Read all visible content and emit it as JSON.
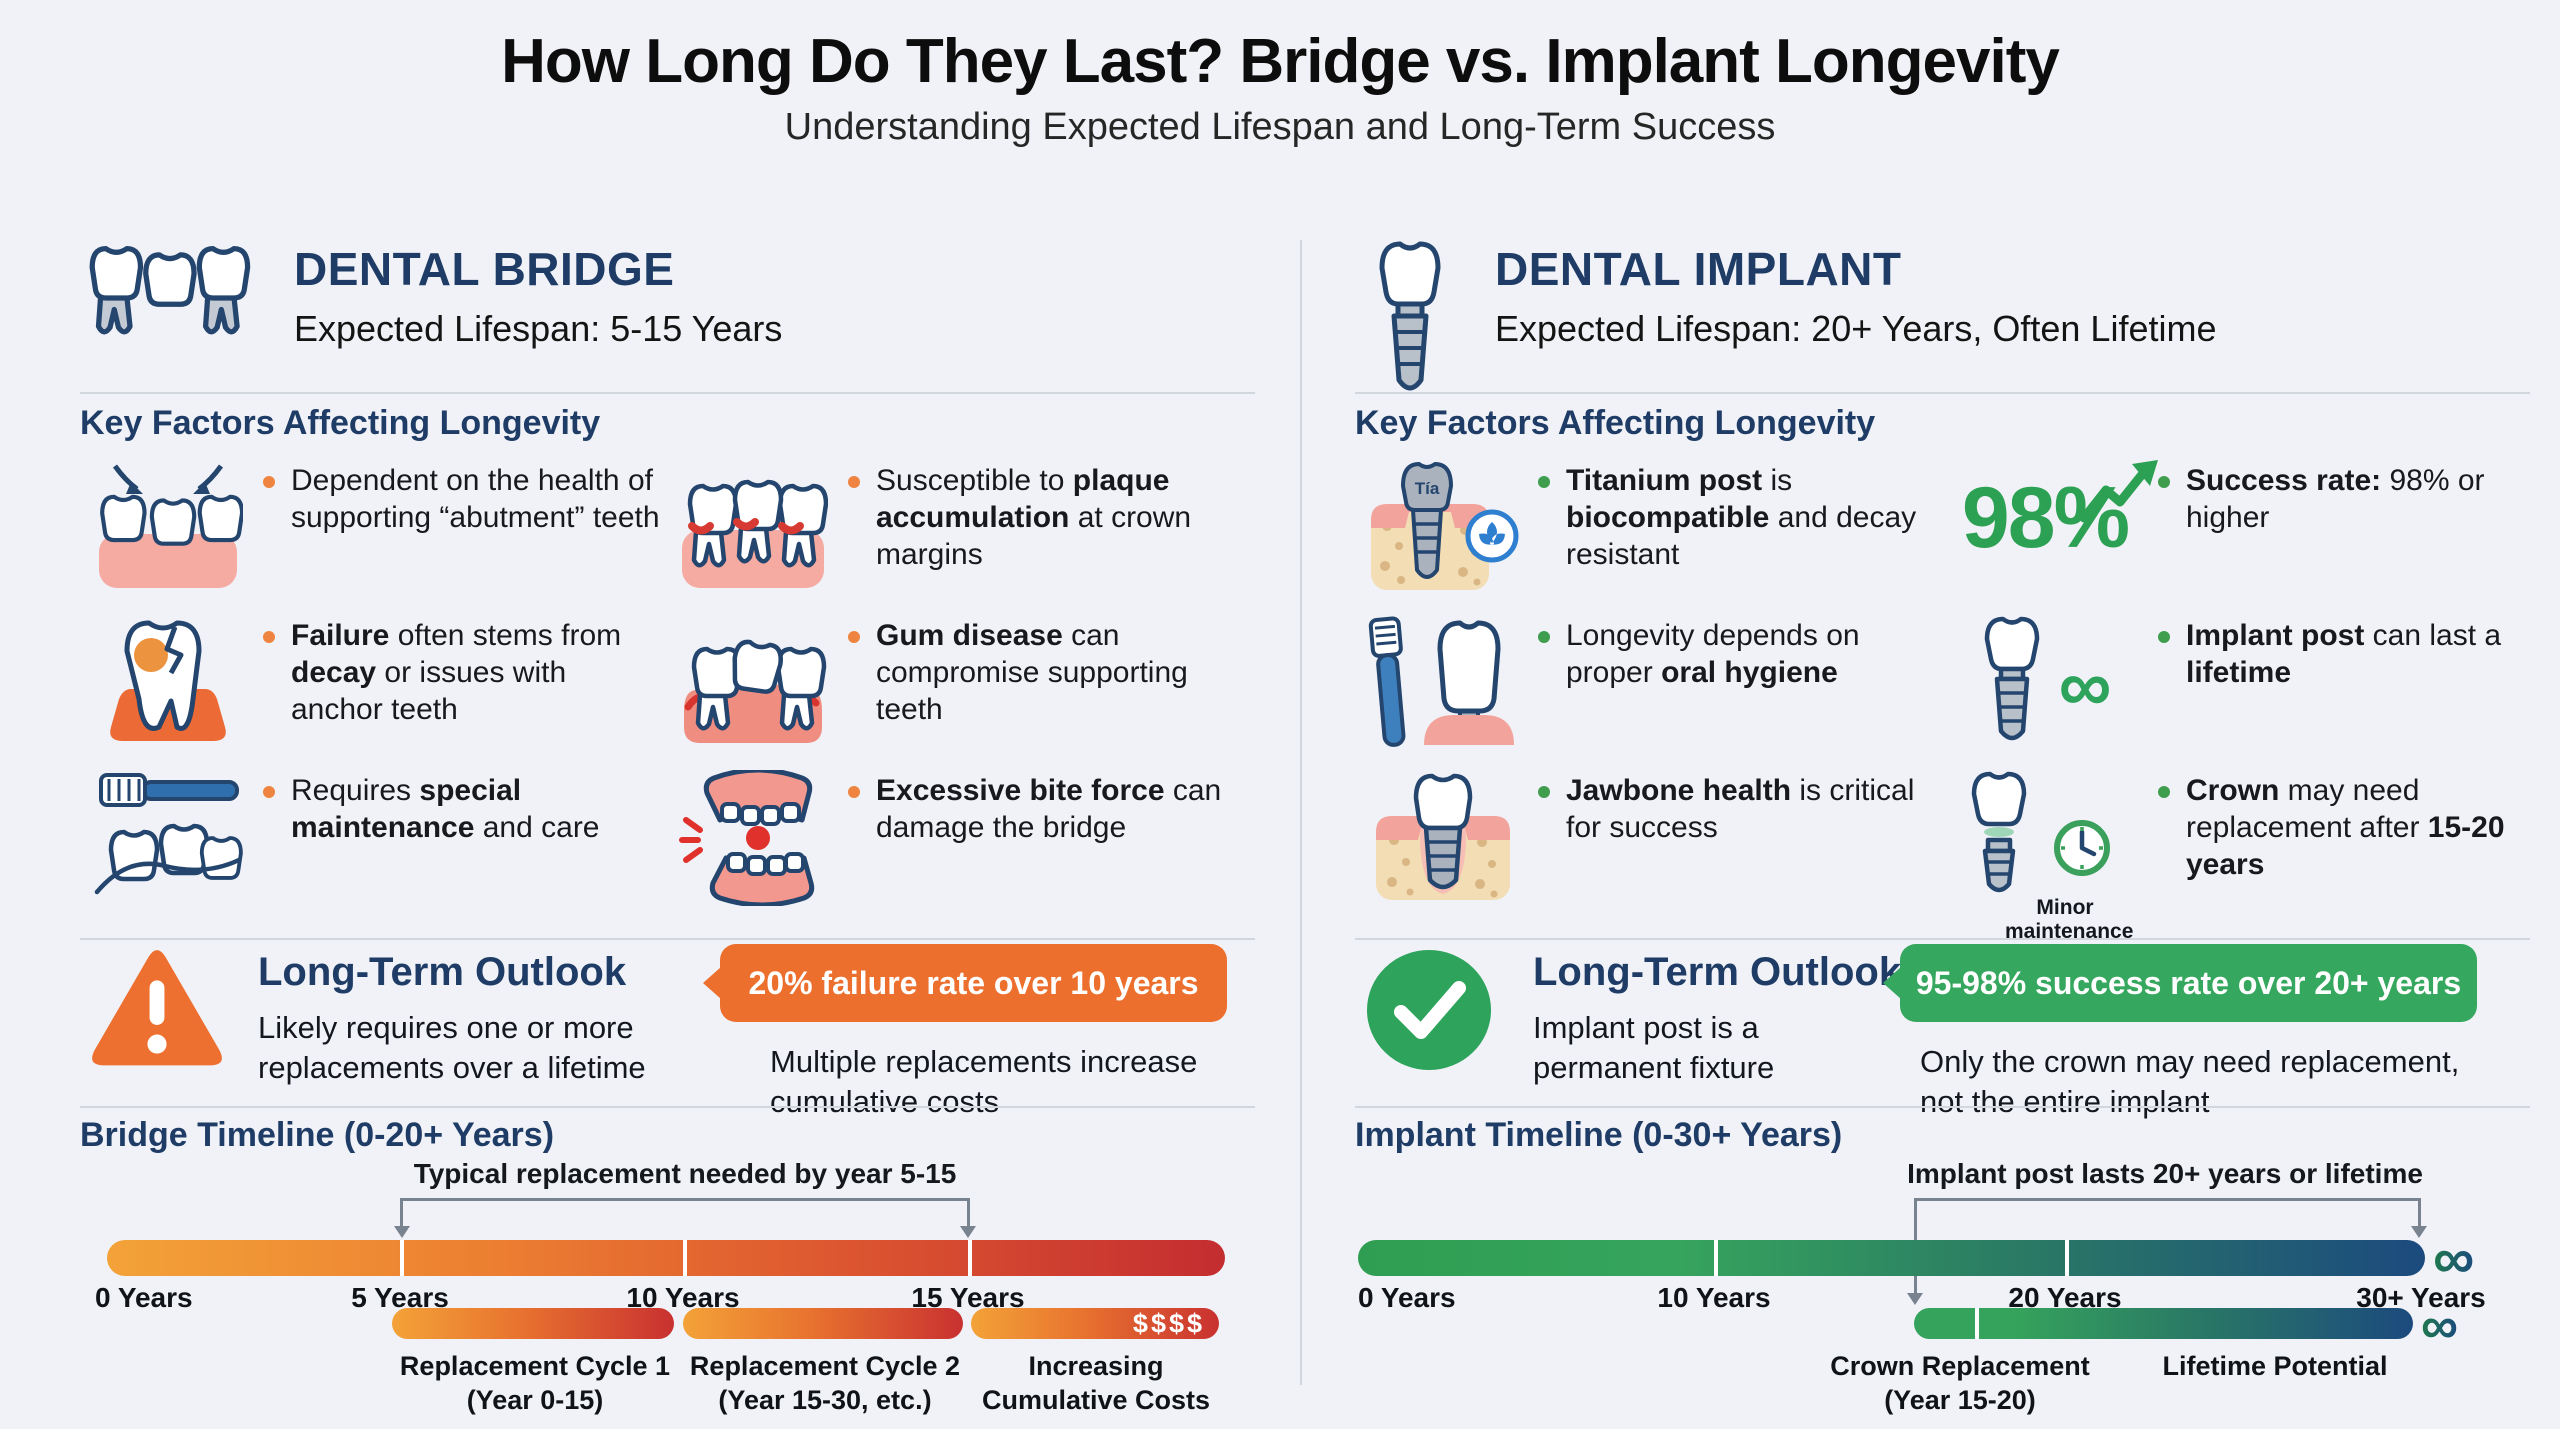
{
  "page": {
    "title": "How Long Do They Last? Bridge vs. Implant Longevity",
    "subtitle": "Understanding Expected Lifespan and Long-Term Success"
  },
  "colors": {
    "background": "#f0f2f7",
    "navy": "#1e3c66",
    "orange_accent": "#ec6f2d",
    "deep_red": "#c42d30",
    "green_accent": "#2da35b",
    "dark_blue": "#1c4a7e",
    "divider": "#d2d7de"
  },
  "bridge": {
    "name": "DENTAL BRIDGE",
    "lifespan": "Expected Lifespan: 5-15 Years",
    "factors_heading": "Key Factors Affecting Longevity",
    "factors": [
      {
        "icon": "abutment-teeth-icon",
        "segments": [
          {
            "t": "Dependent on the health of supporting “abutment” teeth"
          }
        ]
      },
      {
        "icon": "plaque-accumulation-icon",
        "segments": [
          {
            "t": "Susceptible to "
          },
          {
            "t": "plaque accumulation",
            "b": true
          },
          {
            "t": " at crown margins"
          }
        ]
      },
      {
        "icon": "decayed-tooth-icon",
        "segments": [
          {
            "t": "Failure",
            "b": true
          },
          {
            "t": " often stems from "
          },
          {
            "t": "decay",
            "b": true
          },
          {
            "t": " or issues with anchor teeth"
          }
        ]
      },
      {
        "icon": "gum-disease-icon",
        "segments": [
          {
            "t": "Gum disease",
            "b": true
          },
          {
            "t": " can compromise supporting teeth"
          }
        ]
      },
      {
        "icon": "special-maintenance-icon",
        "segments": [
          {
            "t": "Requires "
          },
          {
            "t": "special maintenance",
            "b": true
          },
          {
            "t": " and care"
          }
        ]
      },
      {
        "icon": "bite-force-icon",
        "segments": [
          {
            "t": "Excessive bite force",
            "b": true
          },
          {
            "t": " can damage the bridge"
          }
        ]
      }
    ],
    "outlook": {
      "heading": "Long-Term Outlook",
      "body": "Likely requires one or more replacements over a lifetime",
      "badge": "20% failure rate over 10 years",
      "note": "Multiple replacements increase cumulative costs"
    },
    "timeline": {
      "heading": "Bridge Timeline (0-20+ Years)",
      "annotation": "Typical replacement needed by year 5-15",
      "ticks": [
        "0 Years",
        "5 Years",
        "10 Years",
        "15 Years"
      ],
      "cost_symbol": "$$$$",
      "segments": [
        {
          "line1": "Replacement Cycle 1",
          "line2": "(Year 0-15)"
        },
        {
          "line1": "Replacement Cycle 2",
          "line2": "(Year 15-30, etc.)"
        },
        {
          "line1": "Increasing",
          "line2": "Cumulative Costs"
        }
      ]
    }
  },
  "implant": {
    "name": "DENTAL IMPLANT",
    "lifespan": "Expected Lifespan: 20+ Years, Often Lifetime",
    "factors_heading": "Key Factors Affecting Longevity",
    "factors": [
      {
        "icon": "titanium-implant-icon",
        "icon_label": "Tía",
        "segments": [
          {
            "t": "Titanium post",
            "b": true
          },
          {
            "t": " is "
          },
          {
            "t": "biocompatible",
            "b": true
          },
          {
            "t": " and decay resistant"
          }
        ]
      },
      {
        "icon": "success-rate-figure",
        "figure": "98%",
        "segments": [
          {
            "t": "Success rate:",
            "b": true
          },
          {
            "t": " 98% or higher"
          }
        ]
      },
      {
        "icon": "oral-hygiene-icon",
        "segments": [
          {
            "t": "Longevity depends on proper "
          },
          {
            "t": "oral hygiene",
            "b": true
          }
        ]
      },
      {
        "icon": "implant-lifetime-icon",
        "symbol": "∞",
        "segments": [
          {
            "t": "Implant post",
            "b": true
          },
          {
            "t": " can last a "
          },
          {
            "t": "lifetime",
            "b": true
          }
        ]
      },
      {
        "icon": "jawbone-health-icon",
        "segments": [
          {
            "t": "Jawbone health",
            "b": true
          },
          {
            "t": " is critical for success"
          }
        ]
      },
      {
        "icon": "crown-replacement-icon",
        "caption": "Minor maintenance",
        "segments": [
          {
            "t": "Crown",
            "b": true
          },
          {
            "t": " may need replacement after "
          },
          {
            "t": "15-20 years",
            "b": true
          }
        ]
      }
    ],
    "outlook": {
      "heading": "Long-Term Outlook",
      "body": "Implant post is a permanent fixture",
      "badge": "95-98% success rate over 20+ years",
      "note": "Only the crown may need replacement, not the entire implant"
    },
    "timeline": {
      "heading": "Implant Timeline (0-30+ Years)",
      "annotation": "Implant post lasts 20+ years or lifetime",
      "ticks": [
        "0 Years",
        "10 Years",
        "20 Years",
        "30+ Years"
      ],
      "infinity": "∞",
      "segments": [
        {
          "line1": "Crown Replacement",
          "line2": "(Year 15-20)"
        },
        {
          "line1": "Lifetime Potential",
          "line2": ""
        }
      ]
    }
  }
}
